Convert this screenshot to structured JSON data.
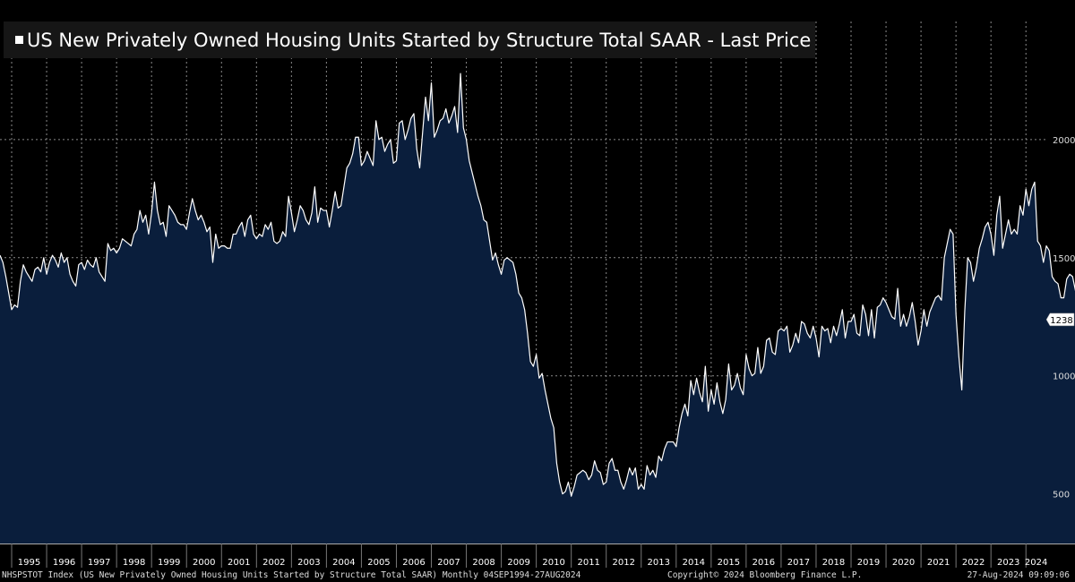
{
  "chart_data": {
    "type": "area",
    "title": "US New Privately Owned Housing Units Started by Structure Total SAAR - Last Price",
    "ticker_line": "NHSPSTOT Index (US New Privately Owned Housing Units Started by Structure Total SAAR)  Monthly 04SEP1994-27AUG2024",
    "copyright": "Copyright© 2024 Bloomberg Finance L.P.",
    "timestamp": "27-Aug-2024 09:09:06",
    "last_value_label": "1238",
    "ylim": [
      290,
      2500
    ],
    "y_ticks": [
      500,
      1000,
      1500,
      2000
    ],
    "y_tick_labels": [
      "500",
      "1000",
      "1500",
      "2000"
    ],
    "x_tick_labels": [
      "1995",
      "1996",
      "1997",
      "1998",
      "1999",
      "2000",
      "2001",
      "2002",
      "2003",
      "2004",
      "2005",
      "2006",
      "2007",
      "2008",
      "2009",
      "2010",
      "2011",
      "2012",
      "2013",
      "2014",
      "2015",
      "2016",
      "2017",
      "2018",
      "2019",
      "2020",
      "2021",
      "2022",
      "2023",
      "2024"
    ],
    "x_range": [
      "1994-09",
      "2024-08"
    ],
    "colors": {
      "line": "#ffffff",
      "fill": "#0a1e3c",
      "grid": "#8a8a8a",
      "background": "#000000"
    },
    "grid": true,
    "series": [
      {
        "start": "1994-09",
        "frequency": "monthly",
        "values": [
          1510,
          1480,
          1420,
          1350,
          1280,
          1300,
          1290,
          1400,
          1470,
          1440,
          1420,
          1400,
          1450,
          1460,
          1440,
          1500,
          1430,
          1480,
          1510,
          1490,
          1460,
          1520,
          1480,
          1500,
          1430,
          1400,
          1380,
          1470,
          1480,
          1450,
          1490,
          1470,
          1460,
          1500,
          1440,
          1420,
          1400,
          1560,
          1530,
          1540,
          1520,
          1540,
          1580,
          1570,
          1560,
          1550,
          1600,
          1620,
          1700,
          1650,
          1680,
          1600,
          1690,
          1820,
          1700,
          1640,
          1650,
          1590,
          1720,
          1700,
          1680,
          1650,
          1640,
          1640,
          1620,
          1690,
          1750,
          1700,
          1660,
          1680,
          1650,
          1610,
          1630,
          1480,
          1600,
          1540,
          1550,
          1550,
          1540,
          1540,
          1600,
          1600,
          1630,
          1650,
          1590,
          1660,
          1680,
          1600,
          1580,
          1600,
          1590,
          1640,
          1620,
          1650,
          1570,
          1560,
          1570,
          1610,
          1590,
          1760,
          1690,
          1610,
          1660,
          1720,
          1700,
          1660,
          1640,
          1690,
          1800,
          1650,
          1710,
          1700,
          1700,
          1630,
          1700,
          1780,
          1710,
          1720,
          1800,
          1880,
          1900,
          1940,
          2010,
          2010,
          1890,
          1910,
          1950,
          1920,
          1890,
          2080,
          2000,
          2010,
          1950,
          1980,
          2000,
          1900,
          1910,
          2070,
          2080,
          2000,
          2040,
          2090,
          2110,
          1960,
          1880,
          2030,
          2180,
          2080,
          2240,
          2010,
          2040,
          2080,
          2090,
          2130,
          2070,
          2100,
          2140,
          2030,
          2280,
          2050,
          2000,
          1910,
          1860,
          1810,
          1760,
          1720,
          1660,
          1650,
          1570,
          1490,
          1520,
          1470,
          1430,
          1490,
          1500,
          1490,
          1480,
          1430,
          1350,
          1330,
          1280,
          1180,
          1060,
          1040,
          1090,
          990,
          1010,
          940,
          880,
          820,
          780,
          630,
          550,
          500,
          510,
          550,
          490,
          530,
          580,
          590,
          600,
          590,
          560,
          580,
          640,
          600,
          590,
          540,
          550,
          630,
          650,
          600,
          600,
          550,
          520,
          560,
          610,
          580,
          610,
          520,
          540,
          520,
          620,
          580,
          600,
          570,
          660,
          640,
          690,
          720,
          720,
          720,
          700,
          780,
          840,
          880,
          830,
          980,
          920,
          990,
          930,
          890,
          1040,
          850,
          940,
          880,
          970,
          890,
          840,
          900,
          1050,
          940,
          960,
          1010,
          950,
          920,
          1090,
          1030,
          1000,
          1010,
          1120,
          1010,
          1040,
          1150,
          1160,
          1100,
          1090,
          1190,
          1200,
          1190,
          1210,
          1100,
          1130,
          1180,
          1140,
          1230,
          1220,
          1180,
          1160,
          1210,
          1160,
          1080,
          1210,
          1190,
          1200,
          1140,
          1210,
          1170,
          1220,
          1280,
          1160,
          1230,
          1230,
          1260,
          1180,
          1170,
          1300,
          1260,
          1170,
          1280,
          1160,
          1290,
          1300,
          1330,
          1310,
          1280,
          1250,
          1240,
          1370,
          1210,
          1260,
          1210,
          1250,
          1310,
          1230,
          1130,
          1190,
          1280,
          1210,
          1270,
          1300,
          1330,
          1340,
          1320,
          1500,
          1560,
          1620,
          1600,
          1260,
          1080,
          940,
          1270,
          1500,
          1480,
          1400,
          1460,
          1540,
          1580,
          1630,
          1650,
          1600,
          1510,
          1680,
          1760,
          1540,
          1600,
          1660,
          1600,
          1620,
          1600,
          1720,
          1680,
          1790,
          1720,
          1790,
          1820,
          1570,
          1550,
          1480,
          1550,
          1530,
          1420,
          1400,
          1390,
          1330,
          1330,
          1410,
          1430,
          1420,
          1360,
          1460,
          1380,
          1560,
          1360,
          1340,
          1380,
          1540,
          1360,
          1520,
          1360,
          1400,
          1340,
          1370,
          1370,
          1238
        ]
      }
    ]
  }
}
